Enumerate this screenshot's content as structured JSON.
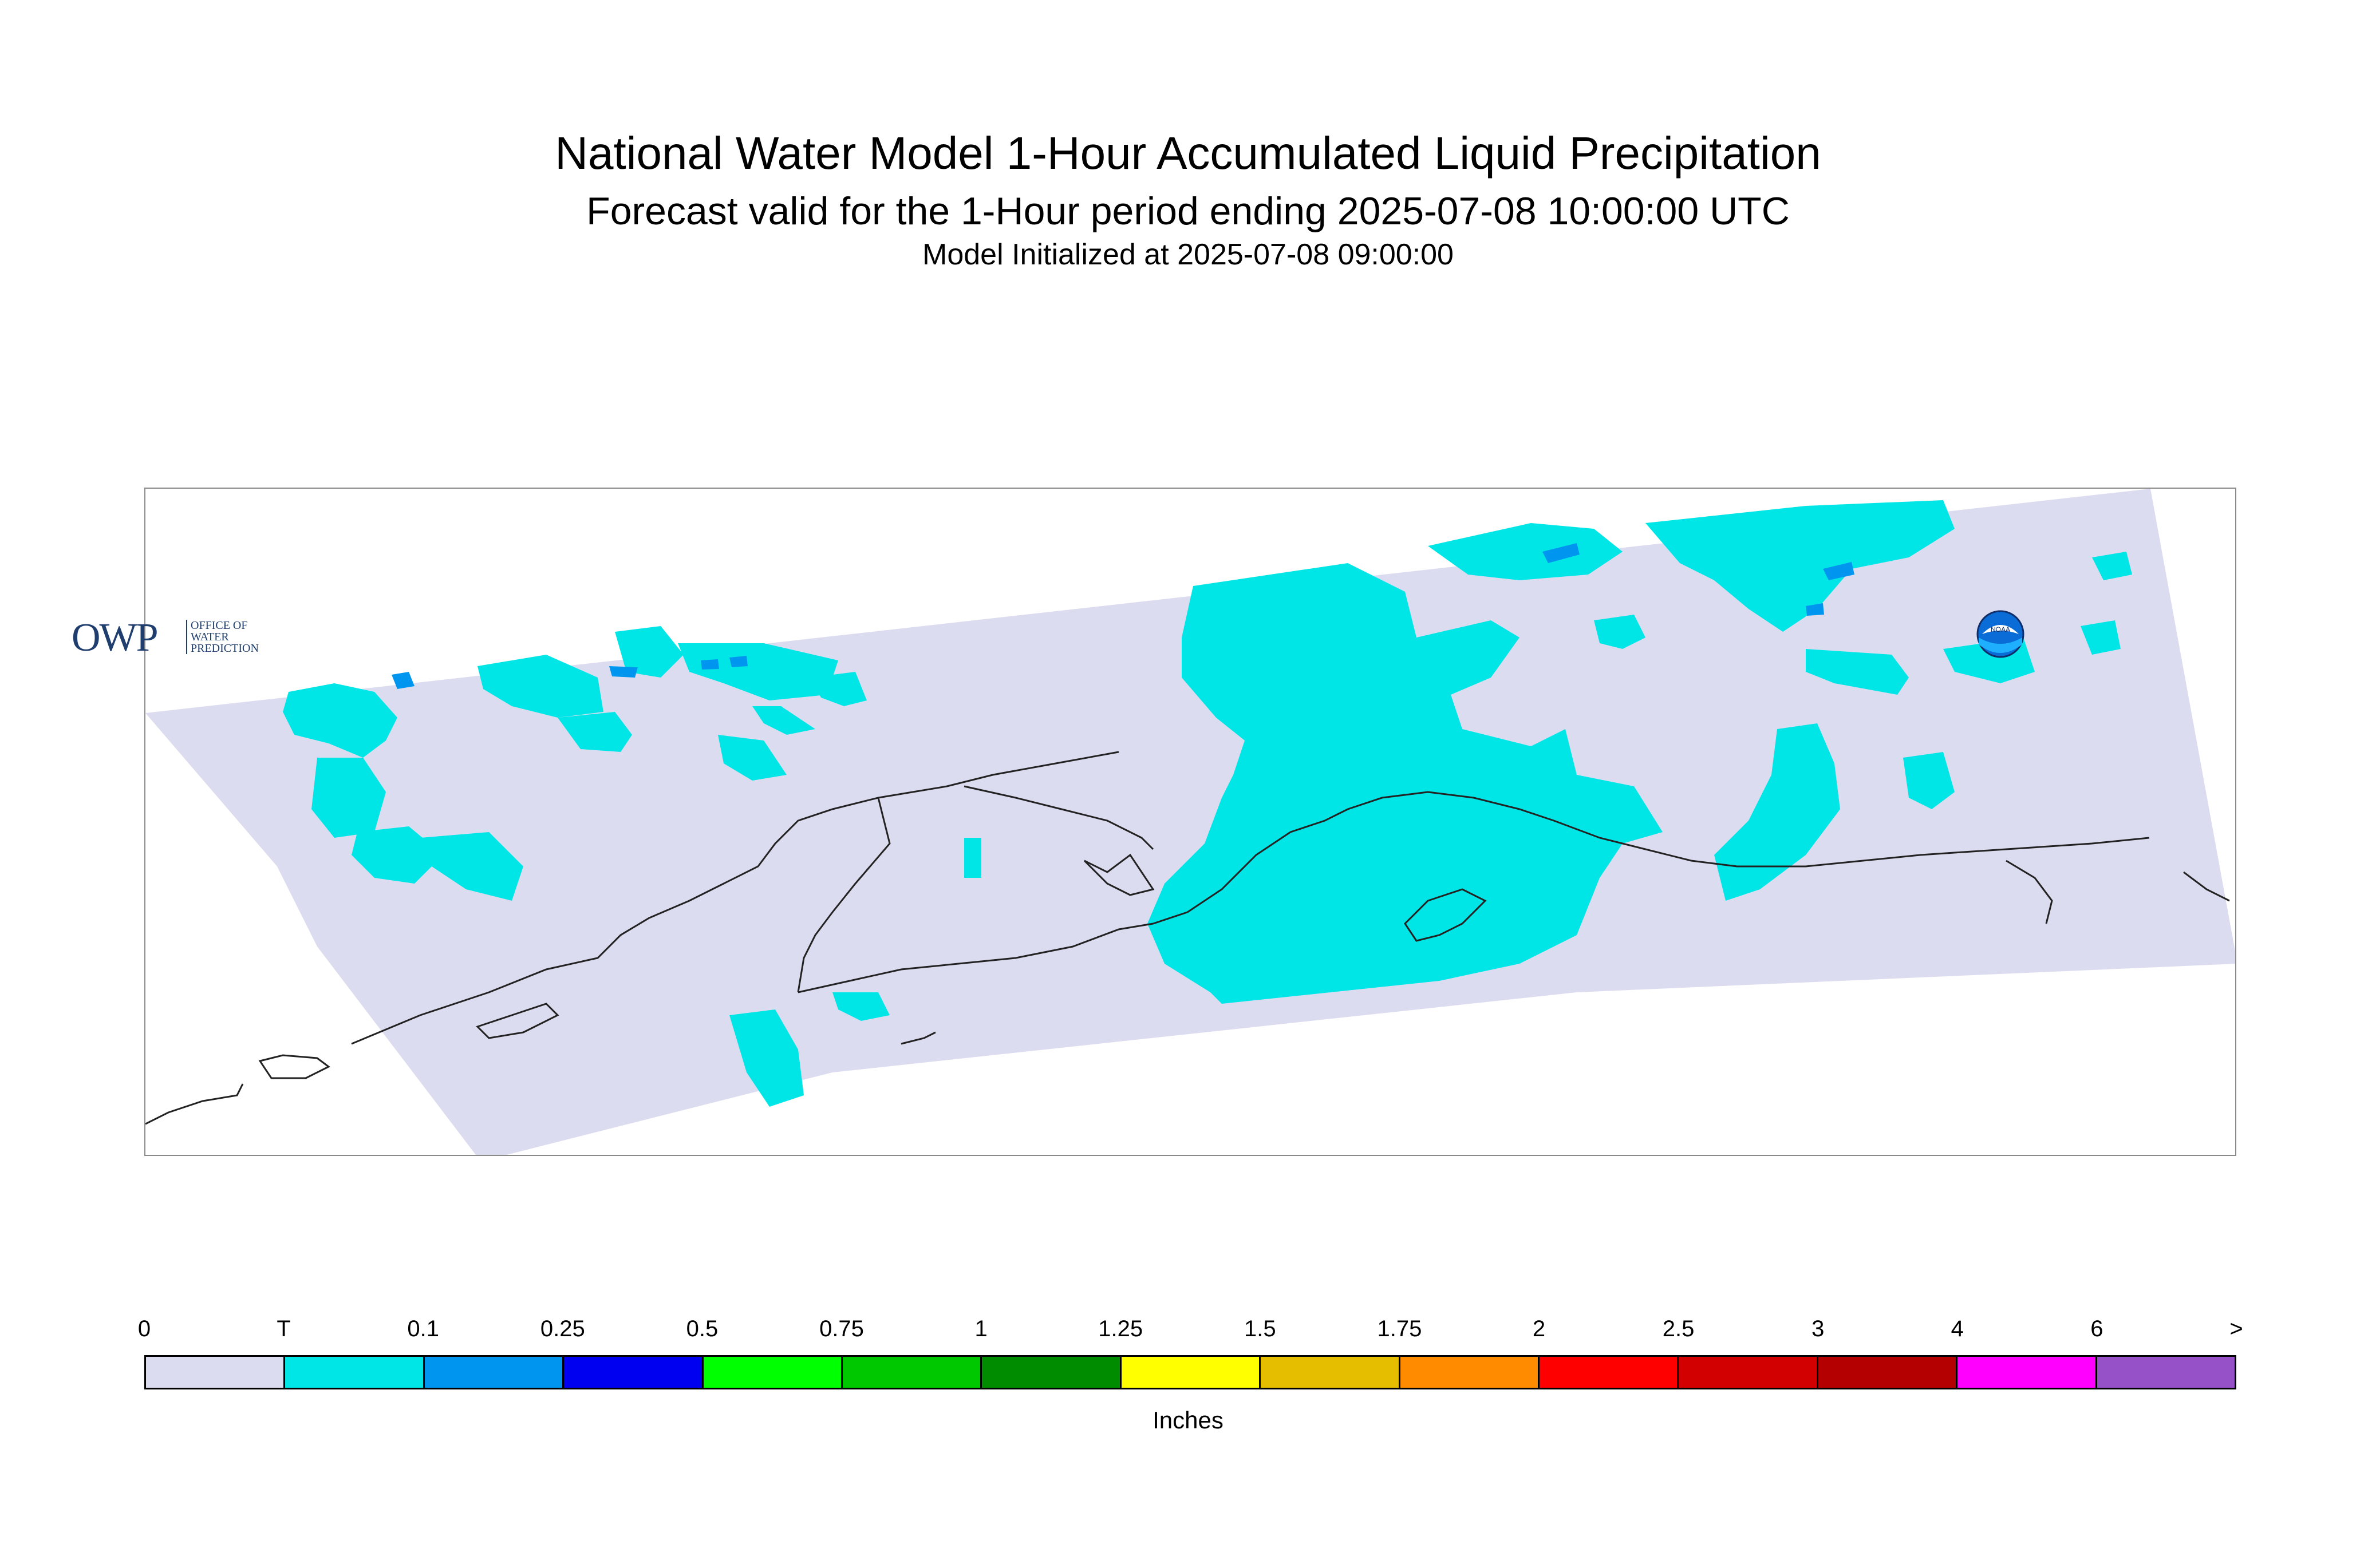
{
  "header": {
    "title": "National Water Model 1-Hour Accumulated Liquid Precipitation",
    "subtitle": "Forecast valid for the 1-Hour period ending 2025-07-08 10:00:00 UTC",
    "init": "Model Initialized at 2025-07-08 09:00:00"
  },
  "logos": {
    "owp_big": "OWP",
    "owp_small": [
      "OFFICE OF",
      "WATER",
      "PREDICTION"
    ],
    "noaa": "NOAA"
  },
  "colorbar": {
    "ticks": [
      "0",
      "T",
      "0.1",
      "0.25",
      "0.5",
      "0.75",
      "1",
      "1.25",
      "1.5",
      "1.75",
      "2",
      "2.5",
      "3",
      "4",
      "6",
      ">"
    ],
    "colors": [
      "#dcdcf0",
      "#00e6e6",
      "#0096f0",
      "#0000f0",
      "#00ff00",
      "#00c800",
      "#008c00",
      "#ffff00",
      "#e6be00",
      "#ff8c00",
      "#ff0000",
      "#d20000",
      "#b40000",
      "#ff00ff",
      "#9650c8"
    ],
    "units": "Inches"
  },
  "map": {
    "no_precip_color": "#dcdcf0",
    "trace_color": "#00e6e6",
    "light_color": "#0096f0",
    "coast_color": "#222222"
  }
}
